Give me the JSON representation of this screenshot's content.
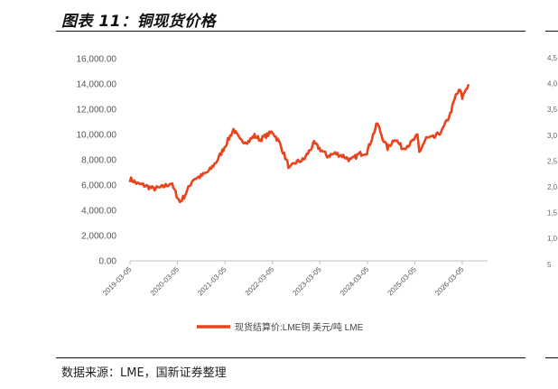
{
  "figure": {
    "title": "图表 11：铜现货价格",
    "source": "数据来源：LME，国新证券整理"
  },
  "chart_data": {
    "type": "line",
    "title": "",
    "xlabel": "",
    "ylabel": "",
    "ylim": [
      0,
      16000
    ],
    "y_ticks": [
      "0.00",
      "2,000.00",
      "4,000.00",
      "6,000.00",
      "8,000.00",
      "10,000.00",
      "12,000.00",
      "14,000.00",
      "16,000.00"
    ],
    "x_ticks": [
      "2019-03-05",
      "2020-03-05",
      "2021-03-05",
      "2022-03-05",
      "2023-03-05",
      "2024-03-05",
      "2025-03-05",
      "2026-03-05"
    ],
    "grid": false,
    "legend": "bottom",
    "series": [
      {
        "name": "现货结算价:LME铜 美元/吨 LME",
        "color": "#e8431d",
        "x": [
          "2019-03-05",
          "2019-05-01",
          "2019-07-01",
          "2019-09-01",
          "2019-11-01",
          "2020-01-15",
          "2020-03-23",
          "2020-05-01",
          "2020-07-01",
          "2020-09-01",
          "2020-11-01",
          "2021-01-01",
          "2021-03-01",
          "2021-05-10",
          "2021-07-01",
          "2021-09-01",
          "2021-10-18",
          "2021-12-01",
          "2022-01-15",
          "2022-03-07",
          "2022-05-01",
          "2022-07-15",
          "2022-09-01",
          "2022-11-01",
          "2023-01-20",
          "2023-03-01",
          "2023-05-01",
          "2023-07-01",
          "2023-09-01",
          "2023-10-30",
          "2024-01-01",
          "2024-03-01",
          "2024-05-20",
          "2024-07-01",
          "2024-08-07",
          "2024-10-01",
          "2024-12-01",
          "2025-02-01",
          "2025-03-25",
          "2025-04-08",
          "2025-06-01",
          "2025-08-01",
          "2025-10-01",
          "2025-12-01",
          "2026-01-15",
          "2026-02-15",
          "2026-03-05",
          "2026-04-01",
          "2026-04-20"
        ],
        "values": [
          6500,
          6100,
          5950,
          5700,
          5800,
          6150,
          4650,
          5200,
          6450,
          6700,
          7100,
          7900,
          9000,
          10400,
          9500,
          9450,
          9900,
          9600,
          9900,
          10200,
          9300,
          7300,
          7800,
          8000,
          9300,
          8900,
          8300,
          8500,
          8300,
          7950,
          8450,
          8600,
          10900,
          9700,
          8900,
          9700,
          8900,
          9300,
          9900,
          8600,
          9700,
          9750,
          10300,
          11600,
          13100,
          13500,
          12900,
          13600,
          13900
        ]
      }
    ]
  },
  "right_panel_peek": {
    "y_ticks": [
      "4,5",
      "4,0",
      "3,5",
      "3,0",
      "2,5",
      "2,0",
      "1,5",
      "1,0",
      "5"
    ]
  }
}
